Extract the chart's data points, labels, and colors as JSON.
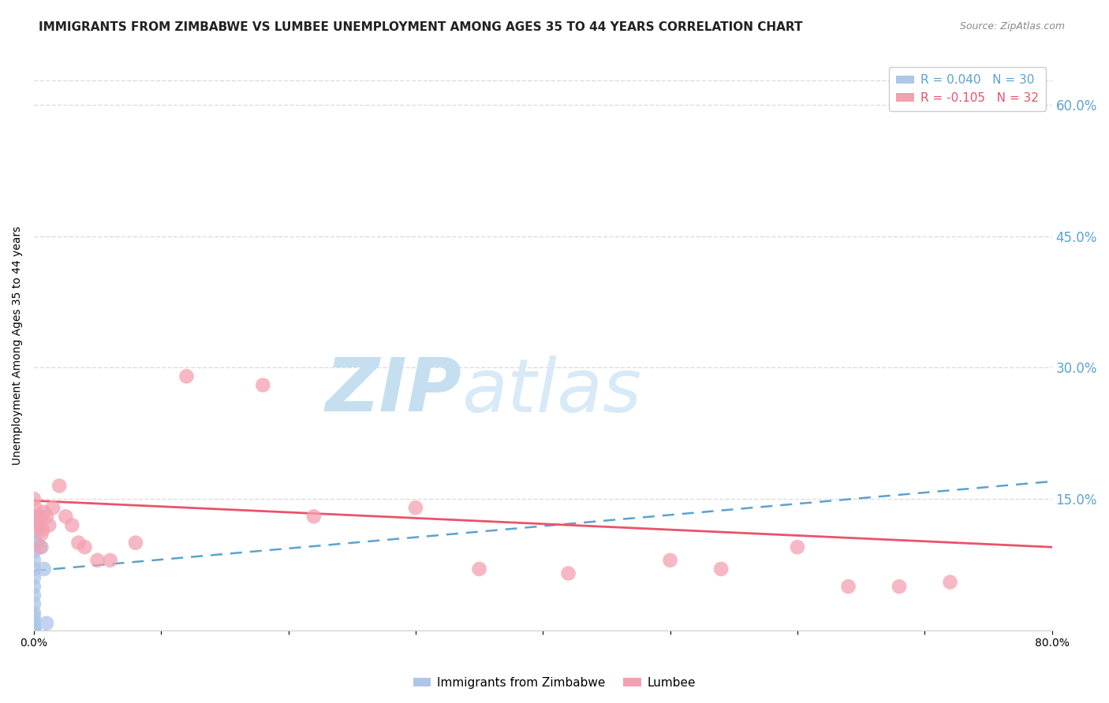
{
  "title": "IMMIGRANTS FROM ZIMBABWE VS LUMBEE UNEMPLOYMENT AMONG AGES 35 TO 44 YEARS CORRELATION CHART",
  "source": "Source: ZipAtlas.com",
  "ylabel": "Unemployment Among Ages 35 to 44 years",
  "xlim": [
    0,
    0.8
  ],
  "ylim": [
    0,
    0.65
  ],
  "yticks_right": [
    0.6,
    0.45,
    0.3,
    0.15
  ],
  "ytick_right_labels": [
    "60.0%",
    "45.0%",
    "30.0%",
    "15.0%"
  ],
  "xtick_positions": [
    0.0,
    0.1,
    0.2,
    0.3,
    0.4,
    0.5,
    0.6,
    0.7,
    0.8
  ],
  "xtick_labels": [
    "0.0%",
    "",
    "",
    "",
    "",
    "",
    "",
    "",
    "80.0%"
  ],
  "watermark_zip": "ZIP",
  "watermark_atlas": "atlas",
  "zimbabwe_color": "#aec6e8",
  "lumbee_color": "#f4a0b0",
  "trend_zimbabwe_color": "#5ba3d0",
  "trend_lumbee_color": "#e8546a",
  "trend_zim_x0": 0.0,
  "trend_zim_y0": 0.068,
  "trend_zim_x1": 0.8,
  "trend_zim_y1": 0.17,
  "trend_lum_x0": 0.0,
  "trend_lum_y0": 0.148,
  "trend_lum_x1": 0.8,
  "trend_lum_y1": 0.095,
  "zimbabwe_x": [
    0.0,
    0.0,
    0.0,
    0.0,
    0.0,
    0.0,
    0.0,
    0.0,
    0.0,
    0.0,
    0.0,
    0.0,
    0.0,
    0.0,
    0.0,
    0.0,
    0.0,
    0.0,
    0.0,
    0.0,
    0.001,
    0.001,
    0.002,
    0.002,
    0.003,
    0.004,
    0.005,
    0.006,
    0.008,
    0.01
  ],
  "zimbabwe_y": [
    0.0,
    0.0,
    0.0,
    0.0,
    0.0,
    0.0,
    0.0,
    0.005,
    0.01,
    0.015,
    0.02,
    0.03,
    0.04,
    0.05,
    0.06,
    0.07,
    0.08,
    0.09,
    0.1,
    0.13,
    0.1,
    0.12,
    0.1,
    0.115,
    0.12,
    0.13,
    0.13,
    0.095,
    0.07,
    0.008
  ],
  "lumbee_x": [
    0.0,
    0.001,
    0.002,
    0.003,
    0.004,
    0.005,
    0.006,
    0.007,
    0.008,
    0.01,
    0.012,
    0.015,
    0.02,
    0.025,
    0.03,
    0.035,
    0.04,
    0.05,
    0.06,
    0.08,
    0.12,
    0.18,
    0.22,
    0.3,
    0.35,
    0.42,
    0.5,
    0.54,
    0.6,
    0.64,
    0.68,
    0.72
  ],
  "lumbee_y": [
    0.15,
    0.14,
    0.13,
    0.125,
    0.12,
    0.095,
    0.11,
    0.115,
    0.135,
    0.13,
    0.12,
    0.14,
    0.165,
    0.13,
    0.12,
    0.1,
    0.095,
    0.08,
    0.08,
    0.1,
    0.29,
    0.28,
    0.13,
    0.14,
    0.07,
    0.065,
    0.08,
    0.07,
    0.095,
    0.05,
    0.05,
    0.055
  ],
  "watermark_color_zip": "#c5dff0",
  "watermark_color_atlas": "#d8eaf7",
  "background_color": "#ffffff",
  "grid_color": "#dddddd",
  "title_fontsize": 11,
  "axis_label_fontsize": 10,
  "tick_fontsize": 10,
  "legend_fontsize": 10,
  "dot_size": 180
}
